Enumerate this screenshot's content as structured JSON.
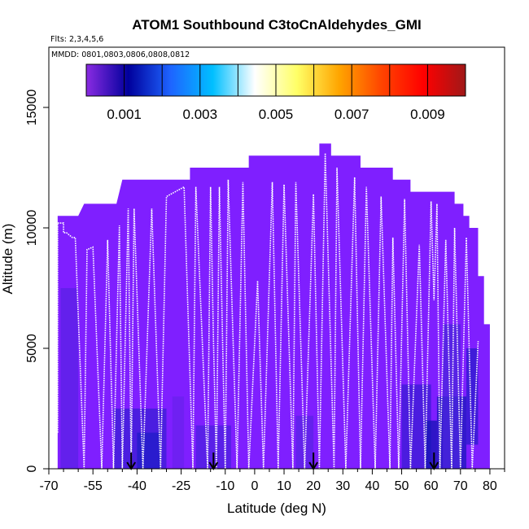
{
  "chart_data": {
    "type": "heatmap",
    "title": "ATOM1 Southbound C3toCnAldehydes_GMI",
    "subtitle_flights": "Flts: 2,3,4,5,6",
    "subtitle_dates": "MMDD: 0801,0803,0806,0808,0812",
    "xlabel": "Latitude (deg N)",
    "ylabel": "Altitude (m)",
    "xlim": [
      -70,
      85
    ],
    "ylim": [
      0,
      17500
    ],
    "x_ticks": [
      "-70",
      "-55",
      "-40",
      "-25",
      "-10",
      "0",
      "10",
      "20",
      "30",
      "40",
      "50",
      "60",
      "70",
      "80"
    ],
    "x_tick_values": [
      -70,
      -55,
      -40,
      -25,
      -10,
      0,
      10,
      20,
      30,
      40,
      50,
      60,
      70,
      80
    ],
    "y_ticks": [
      "0",
      "5000",
      "10000",
      "15000"
    ],
    "y_tick_values": [
      0,
      5000,
      10000,
      15000
    ],
    "colorbar": {
      "range": [
        0,
        0.01
      ],
      "tick_labels": [
        "0.001",
        "0.003",
        "0.005",
        "0.007",
        "0.009"
      ],
      "tick_values": [
        0.001,
        0.003,
        0.005,
        0.007,
        0.009
      ],
      "colors": [
        "#7f1fff",
        "#00009c",
        "#1e90ff",
        "#00bfff",
        "#ffffff",
        "#ffff66",
        "#ffa500",
        "#ff4500",
        "#ff0000",
        "#a01818"
      ]
    },
    "arrows_latitude": [
      -42,
      -14,
      20,
      61
    ],
    "envelope": [
      [
        -67,
        10500
      ],
      [
        -60,
        10500
      ],
      [
        -58,
        11000
      ],
      [
        -47,
        11000
      ],
      [
        -45,
        12000
      ],
      [
        -22,
        12000
      ],
      [
        -22,
        12500
      ],
      [
        -2,
        12500
      ],
      [
        -2,
        13000
      ],
      [
        22,
        13000
      ],
      [
        22,
        13500
      ],
      [
        26,
        13500
      ],
      [
        26,
        13000
      ],
      [
        36,
        13000
      ],
      [
        36,
        12500
      ],
      [
        47,
        12500
      ],
      [
        47,
        12000
      ],
      [
        53,
        12000
      ],
      [
        53,
        11500
      ],
      [
        68,
        11500
      ],
      [
        68,
        11000
      ],
      [
        71,
        11000
      ],
      [
        71,
        10500
      ],
      [
        73,
        10500
      ],
      [
        73,
        10000
      ],
      [
        76,
        10000
      ],
      [
        76,
        8000
      ],
      [
        78,
        8000
      ],
      [
        78,
        6000
      ],
      [
        80,
        6000
      ],
      [
        80,
        0
      ],
      [
        -67,
        0
      ]
    ],
    "flight_track_points": [
      [
        -67,
        1500
      ],
      [
        -67,
        10200
      ],
      [
        -65,
        10200
      ],
      [
        -65,
        9800
      ],
      [
        -64,
        9800
      ],
      [
        -62,
        9600
      ],
      [
        -61,
        9600
      ],
      [
        -58,
        0
      ],
      [
        -57,
        9100
      ],
      [
        -55,
        9200
      ],
      [
        -52,
        0
      ],
      [
        -50,
        9500
      ],
      [
        -48,
        0
      ],
      [
        -46,
        10100
      ],
      [
        -45,
        0
      ],
      [
        -43,
        10800
      ],
      [
        -42,
        0
      ],
      [
        -41,
        10800
      ],
      [
        -38,
        0
      ],
      [
        -35,
        10800
      ],
      [
        -32,
        0
      ],
      [
        -30,
        11300
      ],
      [
        -24,
        11700
      ],
      [
        -21,
        0
      ],
      [
        -20,
        11700
      ],
      [
        -16,
        0
      ],
      [
        -15,
        11700
      ],
      [
        -14,
        5300
      ],
      [
        -13,
        0
      ],
      [
        -12,
        11700
      ],
      [
        -10,
        0
      ],
      [
        -9,
        12000
      ],
      [
        -6,
        0
      ],
      [
        -4,
        11900
      ],
      [
        -2,
        0
      ],
      [
        1,
        7800
      ],
      [
        3,
        0
      ],
      [
        6,
        11900
      ],
      [
        8,
        0
      ],
      [
        10,
        11800
      ],
      [
        13,
        0
      ],
      [
        14,
        11900
      ],
      [
        17,
        0
      ],
      [
        20,
        11400
      ],
      [
        22,
        0
      ],
      [
        24,
        13100
      ],
      [
        27,
        0
      ],
      [
        28,
        12500
      ],
      [
        31,
        0
      ],
      [
        34,
        12100
      ],
      [
        36,
        0
      ],
      [
        38,
        11700
      ],
      [
        41,
        0
      ],
      [
        43,
        11300
      ],
      [
        46,
        0
      ],
      [
        47,
        9600
      ],
      [
        49,
        0
      ],
      [
        51,
        11200
      ],
      [
        53,
        0
      ],
      [
        56,
        9300
      ],
      [
        58,
        0
      ],
      [
        60,
        11100
      ],
      [
        61,
        7000
      ],
      [
        62,
        11000
      ],
      [
        63,
        0
      ],
      [
        65,
        9500
      ],
      [
        67,
        0
      ],
      [
        68,
        10000
      ],
      [
        70,
        0
      ],
      [
        72,
        9600
      ],
      [
        74,
        0
      ],
      [
        76,
        5300
      ]
    ]
  }
}
